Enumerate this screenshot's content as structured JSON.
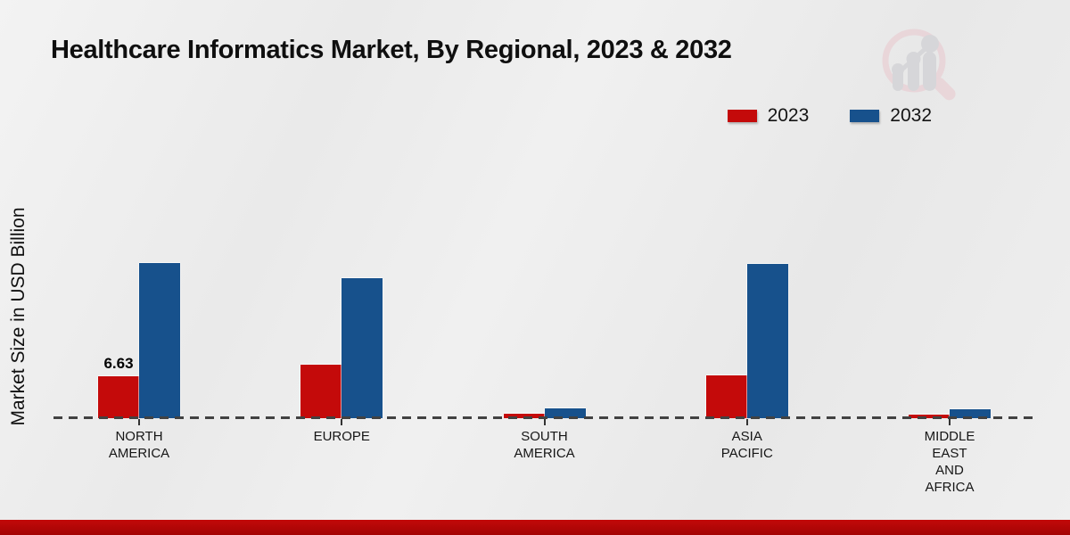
{
  "title": "Healthcare Informatics Market, By Regional, 2023 & 2032",
  "y_axis_label": "Market Size in USD Billion",
  "legend": {
    "items": [
      {
        "label": "2023",
        "color": "#c40a0a"
      },
      {
        "label": "2032",
        "color": "#17518c"
      }
    ]
  },
  "logo_icon": "magnifier-growth-bars-logo",
  "colors": {
    "series_2023": "#c40a0a",
    "series_2032": "#17518c",
    "footer_band": "#b20707",
    "baseline": "#424242",
    "background": "#ececec",
    "text": "#101010"
  },
  "chart_data": {
    "type": "bar",
    "title": "Healthcare Informatics Market, By Regional, 2023 & 2032",
    "xlabel": "",
    "ylabel": "Market Size in USD Billion",
    "categories": [
      "NORTH AMERICA",
      "EUROPE",
      "SOUTH AMERICA",
      "ASIA PACIFIC",
      "MIDDLE EAST AND AFRICA"
    ],
    "category_label_lines": [
      [
        "NORTH",
        "AMERICA"
      ],
      [
        "EUROPE"
      ],
      [
        "SOUTH",
        "AMERICA"
      ],
      [
        "ASIA",
        "PACIFIC"
      ],
      [
        "MIDDLE",
        "EAST",
        "AND",
        "AFRICA"
      ]
    ],
    "series": [
      {
        "name": "2023",
        "color": "#c40a0a",
        "values": [
          6.63,
          8.4,
          0.65,
          6.8,
          0.55
        ]
      },
      {
        "name": "2032",
        "color": "#17518c",
        "values": [
          24.5,
          22.1,
          1.5,
          24.4,
          1.45
        ]
      }
    ],
    "data_labels": [
      {
        "series": "2023",
        "category": "NORTH AMERICA",
        "text": "6.63"
      }
    ],
    "ylim": [
      0,
      26
    ],
    "grid": false,
    "legend_position": "top-right",
    "baseline_style": "dashed",
    "units": "USD Billion"
  }
}
